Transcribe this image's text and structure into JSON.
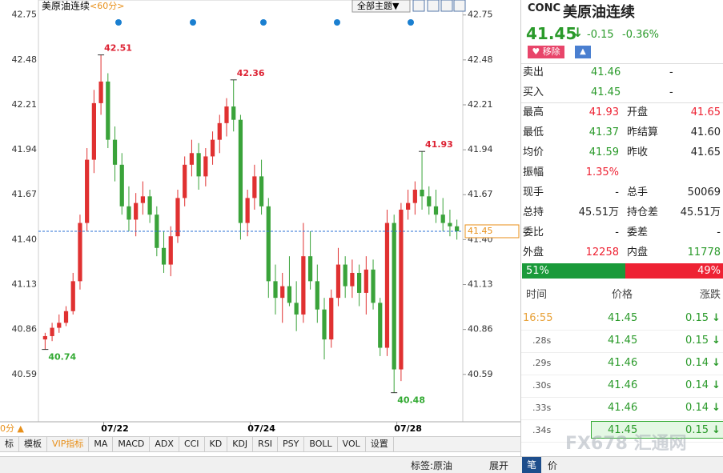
{
  "header": {
    "title": "美原油连续",
    "period": "<60分>",
    "theme_dropdown": "全部主题▼"
  },
  "chart_data": {
    "type": "candlestick",
    "categories": [
      null,
      null,
      null,
      null,
      null,
      null,
      null,
      null,
      null,
      null,
      "07/22",
      null,
      null,
      null,
      null,
      null,
      null,
      null,
      null,
      null,
      null,
      null,
      null,
      null,
      null,
      null,
      null,
      null,
      null,
      null,
      null,
      "07/24",
      null,
      null,
      null,
      null,
      null,
      null,
      null,
      null,
      null,
      null,
      null,
      null,
      null,
      null,
      null,
      null,
      null,
      null,
      null,
      null,
      "07/28",
      null,
      null,
      null,
      null,
      null,
      null,
      null
    ],
    "open": [
      40.8,
      40.82,
      40.87,
      40.9,
      40.97,
      41.15,
      41.5,
      41.88,
      42.22,
      42.35,
      42.0,
      41.85,
      41.6,
      41.52,
      41.62,
      41.66,
      41.55,
      41.35,
      41.25,
      41.42,
      41.65,
      41.85,
      41.92,
      41.78,
      41.9,
      42.0,
      42.1,
      42.2,
      42.12,
      41.5,
      41.65,
      41.78,
      41.6,
      41.15,
      41.05,
      41.12,
      41.02,
      40.95,
      41.3,
      41.15,
      40.98,
      40.8,
      41.05,
      41.25,
      41.12,
      41.2,
      41.08,
      41.22,
      41.02,
      40.75,
      41.5,
      40.62,
      41.58,
      41.62,
      41.7,
      41.66,
      41.6,
      41.55,
      41.5,
      41.48
    ],
    "high": [
      40.84,
      40.9,
      40.95,
      41.0,
      41.2,
      41.55,
      41.95,
      42.3,
      42.51,
      42.4,
      42.08,
      41.92,
      41.72,
      41.68,
      41.75,
      41.7,
      41.6,
      41.45,
      41.48,
      41.7,
      41.9,
      42.0,
      41.98,
      41.95,
      42.05,
      42.15,
      42.25,
      42.36,
      42.15,
      41.7,
      41.85,
      41.88,
      41.65,
      41.25,
      41.2,
      41.3,
      41.15,
      41.5,
      41.45,
      41.25,
      41.05,
      41.1,
      41.35,
      41.3,
      41.28,
      41.25,
      41.3,
      41.28,
      41.05,
      41.58,
      41.55,
      41.62,
      41.7,
      41.75,
      41.93,
      41.72,
      41.7,
      41.65,
      41.58,
      41.52
    ],
    "low": [
      40.74,
      40.79,
      40.84,
      40.88,
      40.95,
      41.1,
      41.45,
      41.8,
      42.15,
      41.95,
      41.75,
      41.55,
      41.45,
      41.42,
      41.55,
      41.5,
      41.3,
      41.2,
      41.18,
      41.38,
      41.6,
      41.78,
      41.7,
      41.72,
      41.85,
      41.92,
      42.02,
      42.05,
      41.4,
      41.42,
      41.58,
      41.55,
      41.05,
      40.95,
      40.9,
      41.0,
      40.85,
      40.9,
      41.1,
      40.9,
      40.68,
      40.75,
      41.0,
      41.05,
      41.05,
      41.0,
      40.95,
      40.98,
      40.7,
      40.7,
      40.48,
      40.55,
      41.52,
      41.55,
      41.58,
      41.55,
      41.5,
      41.45,
      41.42,
      41.4
    ],
    "close": [
      40.82,
      40.87,
      40.9,
      40.97,
      41.15,
      41.5,
      41.88,
      42.22,
      42.35,
      42.0,
      41.85,
      41.6,
      41.52,
      41.62,
      41.66,
      41.55,
      41.35,
      41.25,
      41.42,
      41.65,
      41.85,
      41.92,
      41.78,
      41.9,
      42.0,
      42.1,
      42.2,
      42.12,
      41.5,
      41.65,
      41.78,
      41.6,
      41.15,
      41.05,
      41.12,
      41.02,
      40.95,
      41.3,
      41.15,
      40.98,
      40.8,
      41.05,
      41.25,
      41.12,
      41.2,
      41.08,
      41.22,
      41.02,
      40.75,
      41.5,
      40.62,
      41.58,
      41.62,
      41.7,
      41.66,
      41.6,
      41.55,
      41.5,
      41.48,
      41.45
    ],
    "up_color": "#e03131",
    "down_color": "#3aa33a",
    "ylim": [
      40.31,
      42.84
    ],
    "yticks": [
      42.75,
      42.48,
      42.21,
      41.94,
      41.67,
      {
        "value": 41.4,
        "label": "41.40"
      },
      41.13,
      40.86,
      40.59
    ],
    "extremes": [
      {
        "kind": "high",
        "value": 42.51
      },
      {
        "kind": "high",
        "value": 42.36
      },
      {
        "kind": "high",
        "value": 41.93
      },
      {
        "kind": "low",
        "value": 40.74
      },
      {
        "kind": "low",
        "value": 40.48
      }
    ],
    "last_price": 41.45,
    "last_price_color": "#2a6fd6"
  },
  "controls": {
    "period_indicator": "0分 ▲"
  },
  "toolbar": [
    "标",
    "模板",
    "VIP指标",
    "MA",
    "MACD",
    "ADX",
    "CCI",
    "KD",
    "KDJ",
    "RSI",
    "PSY",
    "BOLL",
    "VOL",
    "设置"
  ],
  "quote": {
    "symbol": "CONC",
    "name": "美原油连续",
    "price": "41.45",
    "change": "-0.15",
    "change_pct": "-0.36%",
    "remove_button": "移除",
    "bid_ask": [
      [
        "卖出",
        "41.46",
        "-"
      ],
      [
        "买入",
        "41.45",
        "-"
      ]
    ],
    "stats": [
      [
        "最高",
        "41.93",
        "开盘",
        "41.65"
      ],
      [
        "最低",
        "41.37",
        "昨结算",
        "41.60"
      ],
      [
        "均价",
        "41.59",
        "昨收",
        "41.65"
      ],
      [
        "振幅",
        "1.35%"
      ],
      [
        "现手",
        "-",
        "总手",
        "50069"
      ],
      [
        "总持",
        "45.51万",
        "持仓差",
        "45.51万"
      ],
      [
        "委比",
        "-",
        "委差",
        "-"
      ],
      [
        "外盘",
        "12258",
        "内盘",
        "11778"
      ]
    ],
    "ratio": [
      {
        "value": 51,
        "label": "51%"
      },
      {
        "value": 49,
        "label": "49%"
      }
    ],
    "trades": {
      "headers": [
        "时间",
        "价格",
        "涨跌"
      ],
      "rows": [
        [
          "16:55",
          "41.45",
          "0.15"
        ],
        [
          ".28s",
          "41.45",
          "0.15"
        ],
        [
          ".29s",
          "41.46",
          "0.14"
        ],
        [
          ".30s",
          "41.46",
          "0.14"
        ],
        [
          ".33s",
          "41.46",
          "0.14"
        ],
        [
          ".34s",
          "41.45",
          "0.15"
        ]
      ]
    }
  },
  "status": {
    "tag": "标签:原油",
    "expand": "展开",
    "tabs": [
      "笔",
      "价"
    ]
  },
  "watermark": "FX678 汇通网"
}
